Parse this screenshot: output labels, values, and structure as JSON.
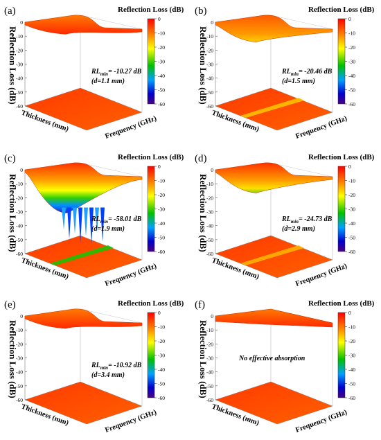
{
  "figure": {
    "common": {
      "zlabel": "Reflection Loss (dB)",
      "xlabel": "Thickness (mm)",
      "ylabel": "Frequency (GHz)",
      "colorbar_title": "Reflection Loss (dB)",
      "colorbar_ticks": [
        "0",
        "-10",
        "-20",
        "-30",
        "-40",
        "-50",
        "-60"
      ],
      "z_ticks": [
        "0",
        "-10",
        "-20",
        "-30",
        "-40",
        "-50",
        "-60"
      ],
      "colors": {
        "high": "#ff0000",
        "mid_high": "#ff8c00",
        "mid": "#ffff00",
        "mid_low": "#00c000",
        "low": "#0000cd",
        "lowest": "#4b0082"
      }
    }
  },
  "chart_data": [
    {
      "type": "surface3d",
      "panel": "(a)",
      "title": "Reflection Loss (dB)",
      "xlabel": "Thickness (mm)",
      "ylabel": "Frequency (GHz)",
      "zlabel": "Reflection Loss (dB)",
      "zlim": [
        -60,
        0
      ],
      "colorbar_range": [
        -60,
        0
      ],
      "annotation": {
        "rl_prefix": "RL",
        "rl_sub": "min",
        "rl_value": "= -10.27 dB",
        "thickness": "(d=1.1 mm)"
      },
      "rl_min": -10.27,
      "d_mm": 1.1
    },
    {
      "type": "surface3d",
      "panel": "(b)",
      "title": "Reflection Loss (dB)",
      "xlabel": "Thickness (mm)",
      "ylabel": "Frequency (GHz)",
      "zlabel": "Reflection Loss (dB)",
      "zlim": [
        -60,
        0
      ],
      "colorbar_range": [
        -60,
        0
      ],
      "annotation": {
        "rl_prefix": "RL",
        "rl_sub": "min",
        "rl_value": "= -20.46 dB",
        "thickness": "(d=1.5 mm)"
      },
      "rl_min": -20.46,
      "d_mm": 1.5
    },
    {
      "type": "surface3d",
      "panel": "(c)",
      "title": "Reflection Loss (dB)",
      "xlabel": "Thickness (mm)",
      "ylabel": "Frequency (GHz)",
      "zlabel": "Reflection Loss (dB)",
      "zlim": [
        -60,
        0
      ],
      "colorbar_range": [
        -60,
        0
      ],
      "annotation": {
        "rl_prefix": "RL",
        "rl_sub": "min",
        "rl_value": "= -58.01 dB",
        "thickness": "(d=1.9 mm)"
      },
      "rl_min": -58.01,
      "d_mm": 1.9
    },
    {
      "type": "surface3d",
      "panel": "(d)",
      "title": "Reflection Loss (dB)",
      "xlabel": "Thickness (mm)",
      "ylabel": "Frequency (GHz)",
      "zlabel": "Reflection Loss (dB)",
      "zlim": [
        -60,
        0
      ],
      "colorbar_range": [
        -60,
        0
      ],
      "annotation": {
        "rl_prefix": "RL",
        "rl_sub": "min",
        "rl_value": "= -24.73 dB",
        "thickness": "(d=2.9 mm)"
      },
      "rl_min": -24.73,
      "d_mm": 2.9
    },
    {
      "type": "surface3d",
      "panel": "(e)",
      "title": "Reflection Loss (dB)",
      "xlabel": "Thickness (mm)",
      "ylabel": "Frequency (GHz)",
      "zlabel": "Reflection Loss (dB)",
      "zlim": [
        -60,
        0
      ],
      "colorbar_range": [
        -60,
        0
      ],
      "annotation": {
        "rl_prefix": "RL",
        "rl_sub": "min",
        "rl_value": "= -10.92 dB",
        "thickness": "(d=3.4 mm)"
      },
      "rl_min": -10.92,
      "d_mm": 3.4
    },
    {
      "type": "surface3d",
      "panel": "(f)",
      "title": "Reflection Loss (dB)",
      "xlabel": "Thickness (mm)",
      "ylabel": "Frequency (GHz)",
      "zlabel": "Reflection Loss (dB)",
      "zlim": [
        -60,
        0
      ],
      "colorbar_range": [
        -60,
        0
      ],
      "annotation_text": "No effective absorption",
      "rl_min": null,
      "d_mm": null
    }
  ]
}
